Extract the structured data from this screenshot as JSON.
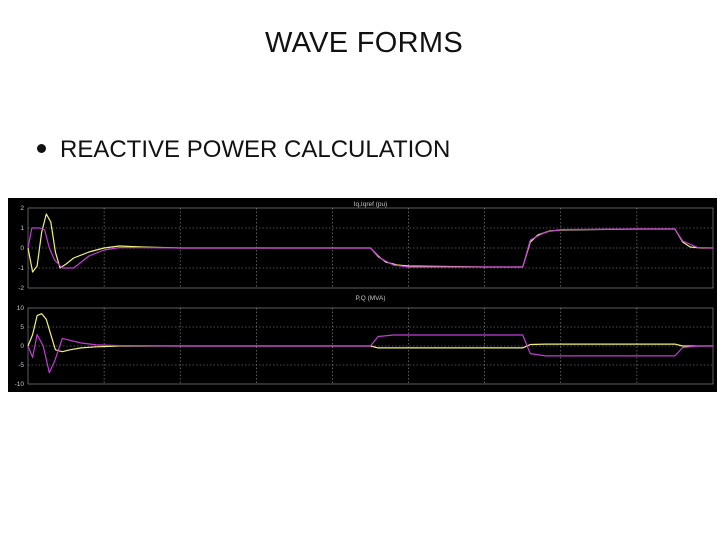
{
  "slide": {
    "title": "WAVE FORMS",
    "bullet": "REACTIVE POWER CALCULATION"
  },
  "colors": {
    "background": "#000000",
    "panel_title": "#c9c9c9",
    "tick_text": "#c9c9c9",
    "grid": "#9a9a9a",
    "series_yellow": "#f2f27a",
    "series_magenta": "#c23cd6"
  },
  "chart_data": [
    {
      "type": "line",
      "title": "Iq,Iqref (pu)",
      "xlim": [
        0,
        9
      ],
      "ylim": [
        -2,
        2
      ],
      "y_ticks": [
        "2",
        "1",
        "0",
        "-1",
        "-2"
      ],
      "grid": true,
      "series": [
        {
          "color": "yellow",
          "x": [
            0,
            0.06,
            0.12,
            0.18,
            0.24,
            0.3,
            0.36,
            0.42,
            0.5,
            0.6,
            0.8,
            1.0,
            1.2,
            1.5,
            2,
            3,
            4.5,
            4.6,
            4.7,
            4.85,
            5,
            6,
            6.5,
            6.6,
            6.7,
            6.85,
            7,
            8,
            8.5,
            8.6,
            8.7,
            8.85,
            9
          ],
          "y": [
            0,
            -1.2,
            -0.9,
            0.8,
            1.7,
            1.3,
            -0.2,
            -1.0,
            -0.8,
            -0.5,
            -0.2,
            0.0,
            0.1,
            0.05,
            0.0,
            0.0,
            0.0,
            -0.4,
            -0.7,
            -0.85,
            -0.9,
            -0.95,
            -0.95,
            0.3,
            0.65,
            0.85,
            0.9,
            0.95,
            0.95,
            0.3,
            0.05,
            0.0,
            0.0
          ]
        },
        {
          "color": "magenta",
          "x": [
            0,
            0.05,
            0.1,
            0.16,
            0.22,
            0.28,
            0.35,
            0.45,
            0.6,
            0.8,
            1.0,
            1.2,
            1.5,
            2,
            3,
            4.5,
            4.6,
            4.8,
            5,
            6,
            6.5,
            6.6,
            6.8,
            7,
            8,
            8.5,
            8.6,
            8.8,
            9
          ],
          "y": [
            0,
            1.0,
            1.0,
            1.0,
            0.9,
            0.0,
            -0.6,
            -1.0,
            -1.0,
            -0.4,
            -0.1,
            0.02,
            0.02,
            0.0,
            0.0,
            0.0,
            -0.45,
            -0.85,
            -0.95,
            -0.95,
            -0.95,
            0.4,
            0.8,
            0.92,
            0.95,
            0.95,
            0.35,
            0.02,
            0.0
          ]
        }
      ]
    },
    {
      "type": "line",
      "title": "P,Q (MVA)",
      "xlim": [
        0,
        9
      ],
      "ylim": [
        -10,
        10
      ],
      "y_ticks": [
        "10",
        "5",
        "0",
        "-5",
        "-10"
      ],
      "grid": true,
      "series": [
        {
          "color": "yellow",
          "x": [
            0,
            0.06,
            0.12,
            0.18,
            0.24,
            0.3,
            0.36,
            0.45,
            0.55,
            0.7,
            0.9,
            1.2,
            2,
            4.5,
            4.6,
            6.5,
            6.6,
            6.8,
            8.5,
            8.6,
            9
          ],
          "y": [
            0,
            3,
            8,
            8.5,
            7,
            3,
            -1,
            -1.5,
            -1,
            -0.5,
            -0.2,
            0,
            0,
            0,
            -0.5,
            -0.5,
            0.4,
            0.5,
            0.5,
            0,
            0
          ]
        },
        {
          "color": "magenta",
          "x": [
            0,
            0.06,
            0.12,
            0.2,
            0.28,
            0.35,
            0.45,
            0.55,
            0.7,
            0.9,
            1.2,
            2,
            4.5,
            4.6,
            4.8,
            6.5,
            6.6,
            6.8,
            8.5,
            8.6,
            8.8,
            9
          ],
          "y": [
            0,
            -3,
            3,
            0,
            -7,
            -4,
            2,
            1.5,
            0.8,
            0.3,
            0.1,
            0,
            0,
            2.5,
            2.9,
            2.9,
            -2,
            -2.6,
            -2.6,
            -0.4,
            0,
            0
          ]
        }
      ]
    }
  ]
}
